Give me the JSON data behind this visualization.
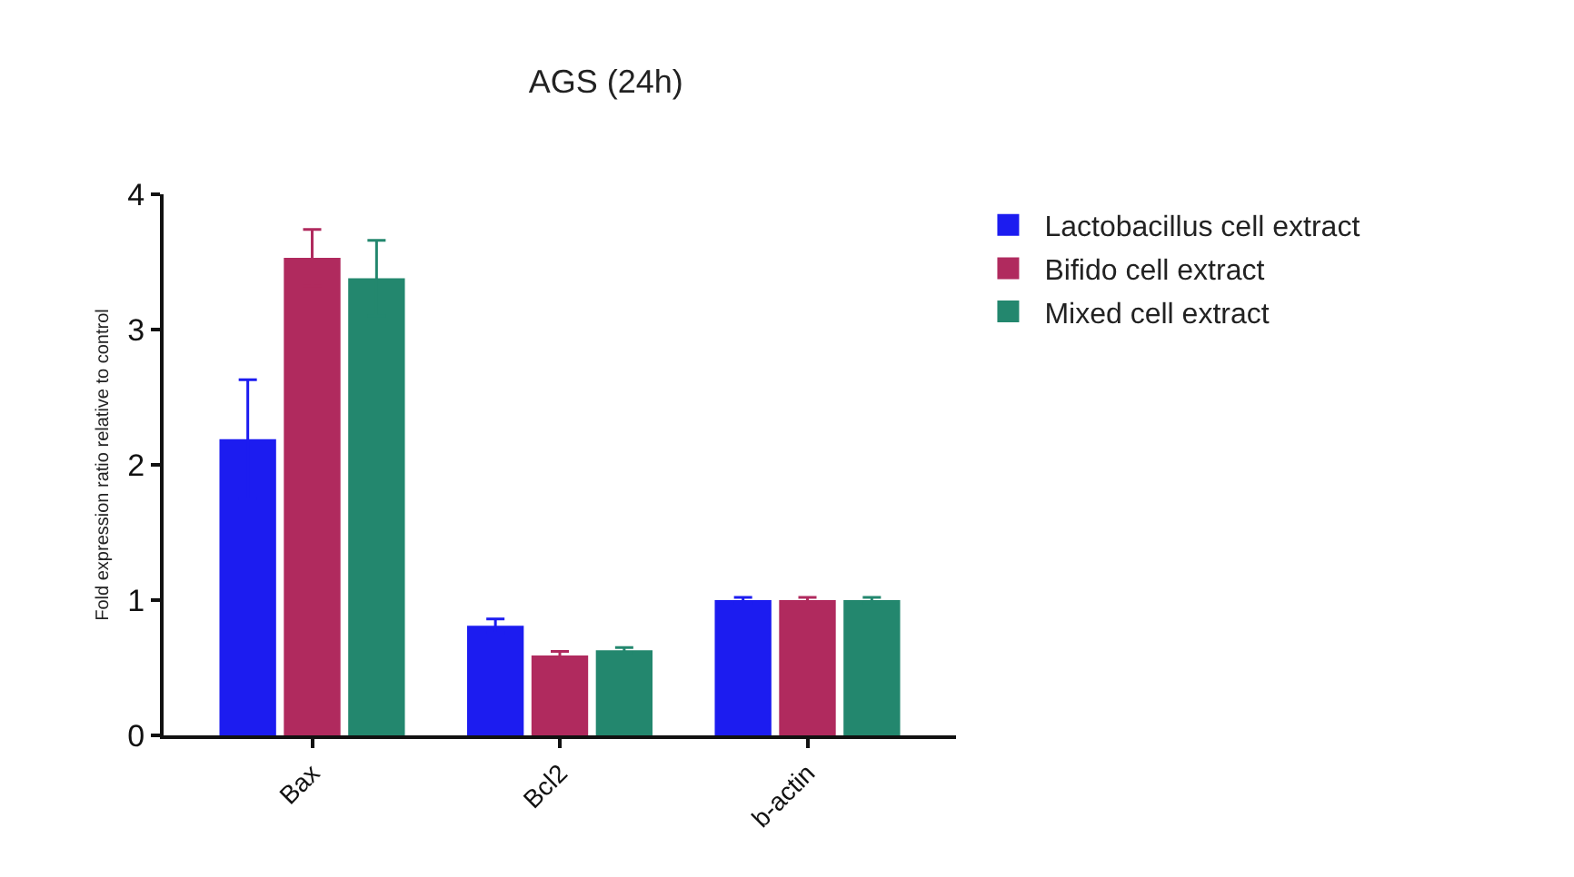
{
  "chart_data": {
    "type": "bar",
    "title": "AGS (24h)",
    "ylabel": "Fold expression ratio relative to control",
    "categories": [
      "Bax",
      "Bcl2",
      "b-actin"
    ],
    "series": [
      {
        "name": "Lactobacillus cell extract",
        "color": "#1c1cf0",
        "values": [
          2.19,
          0.81,
          1.0
        ],
        "errors": [
          0.44,
          0.05,
          0.02
        ]
      },
      {
        "name": "Bifido cell extract",
        "color": "#b02a5e",
        "values": [
          3.53,
          0.59,
          1.0
        ],
        "errors": [
          0.21,
          0.03,
          0.02
        ]
      },
      {
        "name": "Mixed cell extract",
        "color": "#23876e",
        "values": [
          3.38,
          0.63,
          1.0
        ],
        "errors": [
          0.28,
          0.02,
          0.02
        ]
      }
    ],
    "ylim": [
      0,
      4
    ],
    "yticks": [
      0,
      1,
      2,
      3,
      4
    ],
    "grid": false,
    "legend": "top right"
  }
}
